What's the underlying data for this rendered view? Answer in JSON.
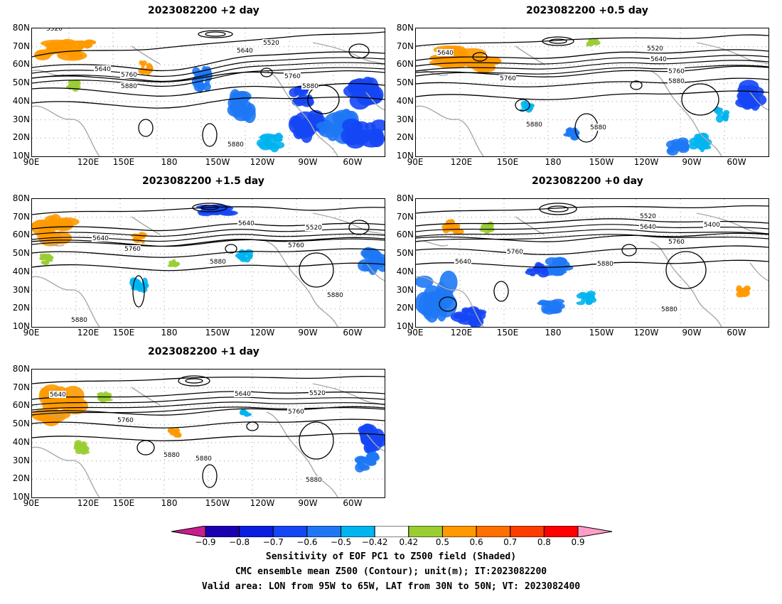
{
  "panels": [
    {
      "title": "2023082200 +2 day"
    },
    {
      "title": "2023082200 +0.5 day"
    },
    {
      "title": "2023082200 +1.5 day"
    },
    {
      "title": "2023082200 +0 day"
    },
    {
      "title": "2023082200 +1 day"
    }
  ],
  "axes": {
    "lat_labels": [
      "80N",
      "70N",
      "60N",
      "50N",
      "40N",
      "30N",
      "20N",
      "10N"
    ],
    "lon_labels": [
      "90E",
      "120E",
      "150E",
      "180",
      "150W",
      "120W",
      "90W",
      "60W"
    ]
  },
  "contour_labels": {
    "p0": [
      "5520",
      "5520",
      "5640",
      "5640",
      "5760",
      "5760",
      "5880",
      "5880",
      "5880"
    ],
    "p1": [
      "5640",
      "5520",
      "5640",
      "5760",
      "5760",
      "5880",
      "5880",
      "5880"
    ],
    "p2": [
      "5640",
      "5520",
      "5640",
      "5760",
      "5760",
      "5880",
      "5880",
      "5880"
    ],
    "p3": [
      "5520",
      "5640",
      "5400",
      "5760",
      "5760",
      "5640",
      "5880",
      "5880"
    ],
    "p4": [
      "5640",
      "5640",
      "5520",
      "5760",
      "5760",
      "5880",
      "5880",
      "5880"
    ]
  },
  "colorbar": {
    "ticks": [
      "−0.9",
      "−0.8",
      "−0.7",
      "−0.6",
      "−0.5",
      "−0.42",
      "0.42",
      "0.5",
      "0.6",
      "0.7",
      "0.8",
      "0.9"
    ],
    "colors": [
      "#1a00b0",
      "#0a1ee0",
      "#1446f5",
      "#1e78f5",
      "#00b4f0",
      "#ffffff",
      "#9acd32",
      "#ff9900",
      "#ff7000",
      "#ff3c00",
      "#ff0000"
    ],
    "under_color": "#c81e8c",
    "over_color": "#ff9ec8"
  },
  "caption": {
    "line1": "Sensitivity of EOF PC1 to Z500 field (Shaded)",
    "line2": "CMC ensemble mean Z500 (Contour); unit(m); IT:2023082200",
    "line3": "Valid area: LON from 95W to 65W, LAT from 30N to 50N; VT: 2023082400"
  }
}
